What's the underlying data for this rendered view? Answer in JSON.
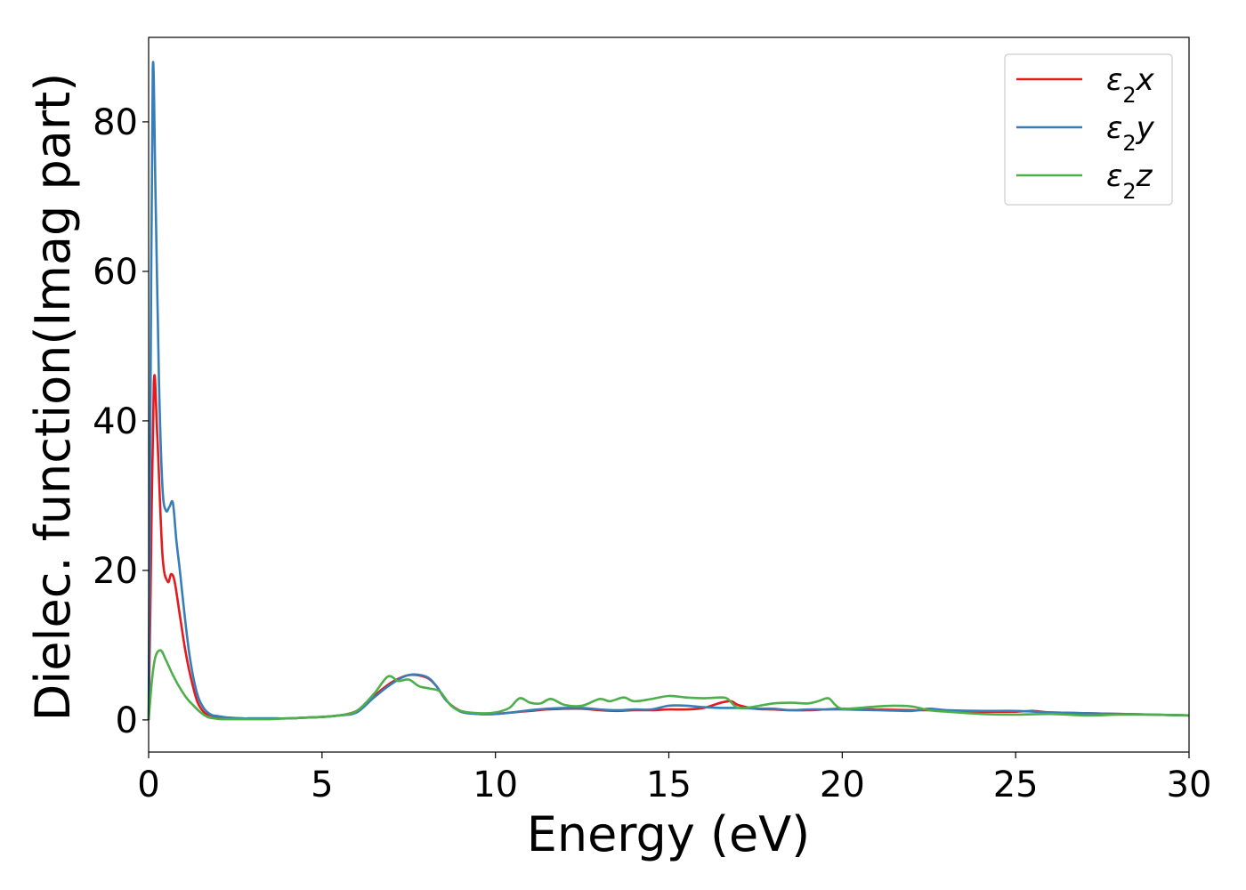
{
  "chart_data": {
    "type": "line",
    "xlabel": "Energy (eV)",
    "ylabel": "Dielec. function(Imag part)",
    "xlim": [
      0,
      30
    ],
    "ylim": [
      -4.3,
      91.3
    ],
    "xticks": [
      0,
      5,
      10,
      15,
      20,
      25,
      30
    ],
    "xtick_labels": [
      "0",
      "5",
      "10",
      "15",
      "20",
      "25",
      "30"
    ],
    "yticks": [
      0,
      20,
      40,
      60,
      80
    ],
    "ytick_labels": [
      "0",
      "20",
      "40",
      "60",
      "80"
    ],
    "grid": false,
    "legend_position": "top-right",
    "series": [
      {
        "name": "ε2x",
        "name_base": "ε",
        "name_sub": "2",
        "name_tail": "x",
        "color": "#e41a1c",
        "x": [
          0,
          0.05,
          0.15,
          0.25,
          0.4,
          0.55,
          0.65,
          0.75,
          0.9,
          1.05,
          1.2,
          1.4,
          1.6,
          1.8,
          2.0,
          2.3,
          2.7,
          3.0,
          3.5,
          4.0,
          4.5,
          5.0,
          5.5,
          6.0,
          6.5,
          7.0,
          7.5,
          8.0,
          8.3,
          8.6,
          9.0,
          9.5,
          10.0,
          10.5,
          11.0,
          11.5,
          12.0,
          12.5,
          13.0,
          13.5,
          14.0,
          14.5,
          15.0,
          15.5,
          16.0,
          16.5,
          16.8,
          17.0,
          17.5,
          18.0,
          18.5,
          19.0,
          19.5,
          20.0,
          21.0,
          22.0,
          22.5,
          23.0,
          24.0,
          25.0,
          25.5,
          26.0,
          27.0,
          28.0,
          29.0,
          30.0
        ],
        "y": [
          0,
          15,
          45,
          38,
          22,
          18.5,
          19.5,
          18.5,
          14,
          9.5,
          6,
          2.5,
          1.0,
          0.6,
          0.4,
          0.3,
          0.2,
          0.2,
          0.2,
          0.2,
          0.3,
          0.4,
          0.6,
          1.2,
          3.2,
          5.0,
          6.0,
          5.7,
          4.5,
          2.5,
          1.2,
          0.8,
          0.8,
          1.0,
          1.2,
          1.4,
          1.5,
          1.5,
          1.3,
          1.2,
          1.3,
          1.3,
          1.4,
          1.4,
          1.6,
          2.3,
          2.5,
          2.0,
          1.5,
          1.4,
          1.3,
          1.3,
          1.4,
          1.5,
          1.4,
          1.3,
          1.3,
          1.2,
          1.1,
          1.1,
          1.2,
          1.0,
          0.9,
          0.8,
          0.7,
          0.6
        ]
      },
      {
        "name": "ε2y",
        "name_base": "ε",
        "name_sub": "2",
        "name_tail": "y",
        "color": "#377eb8",
        "x": [
          0,
          0.05,
          0.12,
          0.2,
          0.3,
          0.4,
          0.5,
          0.6,
          0.7,
          0.8,
          0.9,
          1.05,
          1.2,
          1.4,
          1.6,
          1.8,
          2.0,
          2.3,
          2.7,
          3.0,
          3.5,
          4.0,
          4.5,
          5.0,
          5.5,
          6.0,
          6.5,
          7.0,
          7.5,
          8.0,
          8.3,
          8.6,
          9.0,
          9.5,
          10.0,
          10.5,
          11.0,
          11.5,
          12.0,
          12.5,
          13.0,
          13.5,
          14.0,
          14.5,
          15.0,
          15.5,
          16.0,
          16.5,
          17.0,
          17.5,
          18.0,
          18.5,
          19.0,
          19.5,
          20.0,
          21.0,
          22.0,
          22.5,
          23.0,
          24.0,
          25.0,
          26.0,
          27.0,
          28.0,
          29.0,
          30.0
        ],
        "y": [
          0,
          40,
          87,
          70,
          45,
          31,
          28,
          28.5,
          29,
          24,
          20,
          13.5,
          8,
          3.5,
          1.5,
          0.7,
          0.5,
          0.3,
          0.2,
          0.2,
          0.2,
          0.2,
          0.3,
          0.4,
          0.6,
          1.0,
          3.0,
          4.8,
          6.0,
          5.8,
          4.5,
          2.5,
          1.1,
          0.8,
          0.8,
          1.0,
          1.3,
          1.5,
          1.6,
          1.6,
          1.4,
          1.3,
          1.4,
          1.4,
          1.9,
          1.9,
          1.7,
          1.6,
          1.6,
          1.5,
          1.5,
          1.3,
          1.4,
          1.4,
          1.4,
          1.3,
          1.2,
          1.5,
          1.3,
          1.2,
          1.2,
          1.0,
          0.9,
          0.8,
          0.7,
          0.6
        ]
      },
      {
        "name": "ε2z",
        "name_base": "ε",
        "name_sub": "2",
        "name_tail": "z",
        "color": "#4daf4a",
        "x": [
          0,
          0.1,
          0.2,
          0.35,
          0.5,
          0.7,
          0.9,
          1.1,
          1.3,
          1.5,
          1.7,
          1.9,
          2.1,
          2.5,
          3.0,
          3.5,
          4.0,
          4.5,
          5.0,
          5.5,
          6.0,
          6.5,
          6.9,
          7.2,
          7.5,
          7.8,
          8.1,
          8.4,
          8.7,
          9.0,
          9.5,
          10.0,
          10.4,
          10.7,
          11.0,
          11.3,
          11.6,
          12.0,
          12.5,
          13.0,
          13.3,
          13.7,
          14.0,
          14.5,
          15.0,
          15.5,
          16.0,
          16.5,
          16.7,
          17.0,
          17.5,
          18.0,
          18.5,
          19.0,
          19.3,
          19.6,
          19.8,
          20.0,
          20.5,
          21.0,
          21.5,
          22.0,
          22.5,
          23.0,
          24.0,
          25.0,
          26.0,
          27.0,
          28.0,
          29.0,
          30.0
        ],
        "y": [
          0,
          5.5,
          8.5,
          9.3,
          8.0,
          6.0,
          4.3,
          2.9,
          1.9,
          1.0,
          0.4,
          0.2,
          0.1,
          0.1,
          0.1,
          0.1,
          0.2,
          0.3,
          0.4,
          0.6,
          1.2,
          3.5,
          5.8,
          5.2,
          5.4,
          4.5,
          4.2,
          3.8,
          2.0,
          1.2,
          0.9,
          1.0,
          1.6,
          2.9,
          2.3,
          2.2,
          2.8,
          2.0,
          1.9,
          2.8,
          2.5,
          3.0,
          2.5,
          2.8,
          3.2,
          3.0,
          2.9,
          3.0,
          2.8,
          1.6,
          1.8,
          2.2,
          2.3,
          2.2,
          2.5,
          2.9,
          2.0,
          1.5,
          1.6,
          1.8,
          1.9,
          1.8,
          1.3,
          1.1,
          0.8,
          0.7,
          0.8,
          0.6,
          0.7,
          0.7,
          0.6
        ]
      }
    ]
  }
}
